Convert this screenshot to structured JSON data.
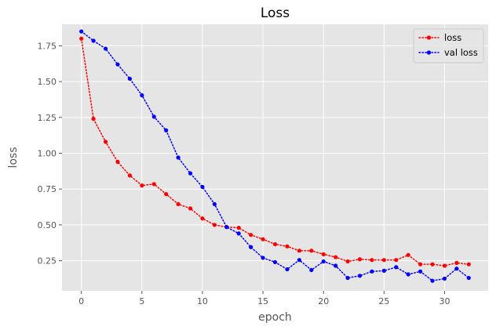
{
  "chart_data": {
    "type": "line",
    "title": "Loss",
    "xlabel": "epoch",
    "ylabel": "loss",
    "xlim": [
      -1.6,
      33.6
    ],
    "ylim": [
      0.04,
      1.9
    ],
    "xticks": [
      0,
      5,
      10,
      15,
      20,
      25,
      30
    ],
    "yticks": [
      0.25,
      0.5,
      0.75,
      1.0,
      1.25,
      1.5,
      1.75
    ],
    "ytick_labels": [
      "0.25",
      "0.50",
      "0.75",
      "1.00",
      "1.25",
      "1.50",
      "1.75"
    ],
    "grid": true,
    "legend_position": "top-right",
    "x": [
      0,
      1,
      2,
      3,
      4,
      5,
      6,
      7,
      8,
      9,
      10,
      11,
      12,
      13,
      14,
      15,
      16,
      17,
      18,
      19,
      20,
      21,
      22,
      23,
      24,
      25,
      26,
      27,
      28,
      29,
      30,
      31,
      32
    ],
    "series": [
      {
        "name": "loss",
        "color": "#ff0000",
        "values": [
          1.8,
          1.24,
          1.08,
          0.94,
          0.845,
          0.775,
          0.785,
          0.715,
          0.645,
          0.615,
          0.545,
          0.5,
          0.485,
          0.48,
          0.43,
          0.4,
          0.365,
          0.35,
          0.32,
          0.32,
          0.295,
          0.275,
          0.245,
          0.26,
          0.255,
          0.255,
          0.255,
          0.29,
          0.225,
          0.225,
          0.215,
          0.235,
          0.225
        ]
      },
      {
        "name": "val loss",
        "color": "#0000ff",
        "values": [
          1.85,
          1.785,
          1.73,
          1.62,
          1.52,
          1.405,
          1.255,
          1.16,
          0.97,
          0.86,
          0.765,
          0.645,
          0.485,
          0.44,
          0.345,
          0.27,
          0.24,
          0.19,
          0.255,
          0.185,
          0.245,
          0.215,
          0.13,
          0.145,
          0.175,
          0.18,
          0.205,
          0.155,
          0.175,
          0.11,
          0.125,
          0.195,
          0.13
        ]
      }
    ]
  },
  "colors": {
    "plot_background": "#e5e5e5",
    "grid": "#ffffff"
  }
}
